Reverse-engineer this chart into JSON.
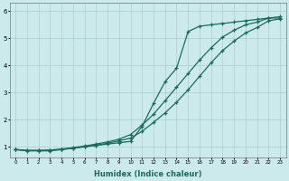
{
  "xlabel": "Humidex (Indice chaleur)",
  "ylabel": "",
  "xlim": [
    -0.5,
    23.5
  ],
  "ylim": [
    0.6,
    6.3
  ],
  "background_color": "#cce9ec",
  "grid_color": "#aacdd2",
  "line_color": "#1a6b5a",
  "x_ticks": [
    0,
    1,
    2,
    3,
    4,
    5,
    6,
    7,
    8,
    9,
    10,
    11,
    12,
    13,
    14,
    15,
    16,
    17,
    18,
    19,
    20,
    21,
    22,
    23
  ],
  "y_ticks": [
    1,
    2,
    3,
    4,
    5,
    6
  ],
  "line1_x": [
    0,
    1,
    2,
    3,
    4,
    5,
    6,
    7,
    8,
    9,
    10,
    11,
    12,
    13,
    14,
    15,
    16,
    17,
    18,
    19,
    20,
    21,
    22,
    23
  ],
  "line1_y": [
    0.9,
    0.85,
    0.85,
    0.85,
    0.9,
    0.95,
    1.0,
    1.05,
    1.1,
    1.15,
    1.2,
    1.75,
    2.6,
    3.4,
    3.9,
    5.25,
    5.45,
    5.5,
    5.55,
    5.6,
    5.65,
    5.7,
    5.75,
    5.8
  ],
  "line2_x": [
    0,
    1,
    2,
    3,
    4,
    5,
    6,
    7,
    8,
    9,
    10,
    11,
    12,
    13,
    14,
    15,
    16,
    17,
    18,
    19,
    20,
    21,
    22,
    23
  ],
  "line2_y": [
    0.9,
    0.87,
    0.87,
    0.88,
    0.92,
    0.97,
    1.03,
    1.1,
    1.18,
    1.28,
    1.45,
    1.8,
    2.2,
    2.7,
    3.2,
    3.7,
    4.2,
    4.65,
    5.05,
    5.3,
    5.5,
    5.6,
    5.75,
    5.75
  ],
  "line3_x": [
    0,
    1,
    2,
    3,
    4,
    5,
    6,
    7,
    8,
    9,
    10,
    11,
    12,
    13,
    14,
    15,
    16,
    17,
    18,
    19,
    20,
    21,
    22,
    23
  ],
  "line3_y": [
    0.9,
    0.86,
    0.86,
    0.87,
    0.9,
    0.95,
    1.0,
    1.06,
    1.13,
    1.22,
    1.32,
    1.57,
    1.9,
    2.25,
    2.65,
    3.1,
    3.6,
    4.1,
    4.55,
    4.9,
    5.2,
    5.4,
    5.65,
    5.72
  ]
}
